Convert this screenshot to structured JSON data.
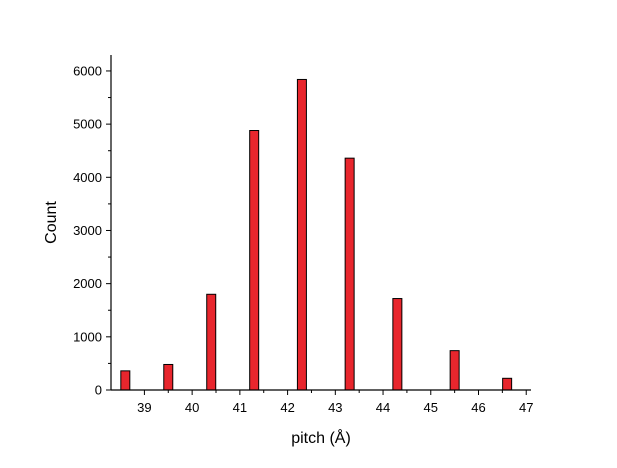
{
  "chart_data": {
    "type": "bar",
    "title": "",
    "xlabel": "pitch (Å)",
    "ylabel": "Count",
    "x": [
      38.6,
      39.5,
      40.4,
      41.3,
      42.3,
      43.3,
      44.3,
      45.5,
      46.6
    ],
    "values": [
      360,
      480,
      1800,
      4880,
      5840,
      4360,
      1720,
      740,
      220
    ],
    "xlim": [
      38.3,
      47.1
    ],
    "ylim": [
      0,
      6300
    ],
    "xticks": [
      "39",
      "40",
      "41",
      "42",
      "43",
      "44",
      "45",
      "46",
      "47"
    ],
    "yticks": [
      "0",
      "1000",
      "2000",
      "3000",
      "4000",
      "5000",
      "6000"
    ],
    "bar_color": "#e8262d",
    "edge_color": "#000000",
    "grid": false,
    "legend": "none"
  }
}
